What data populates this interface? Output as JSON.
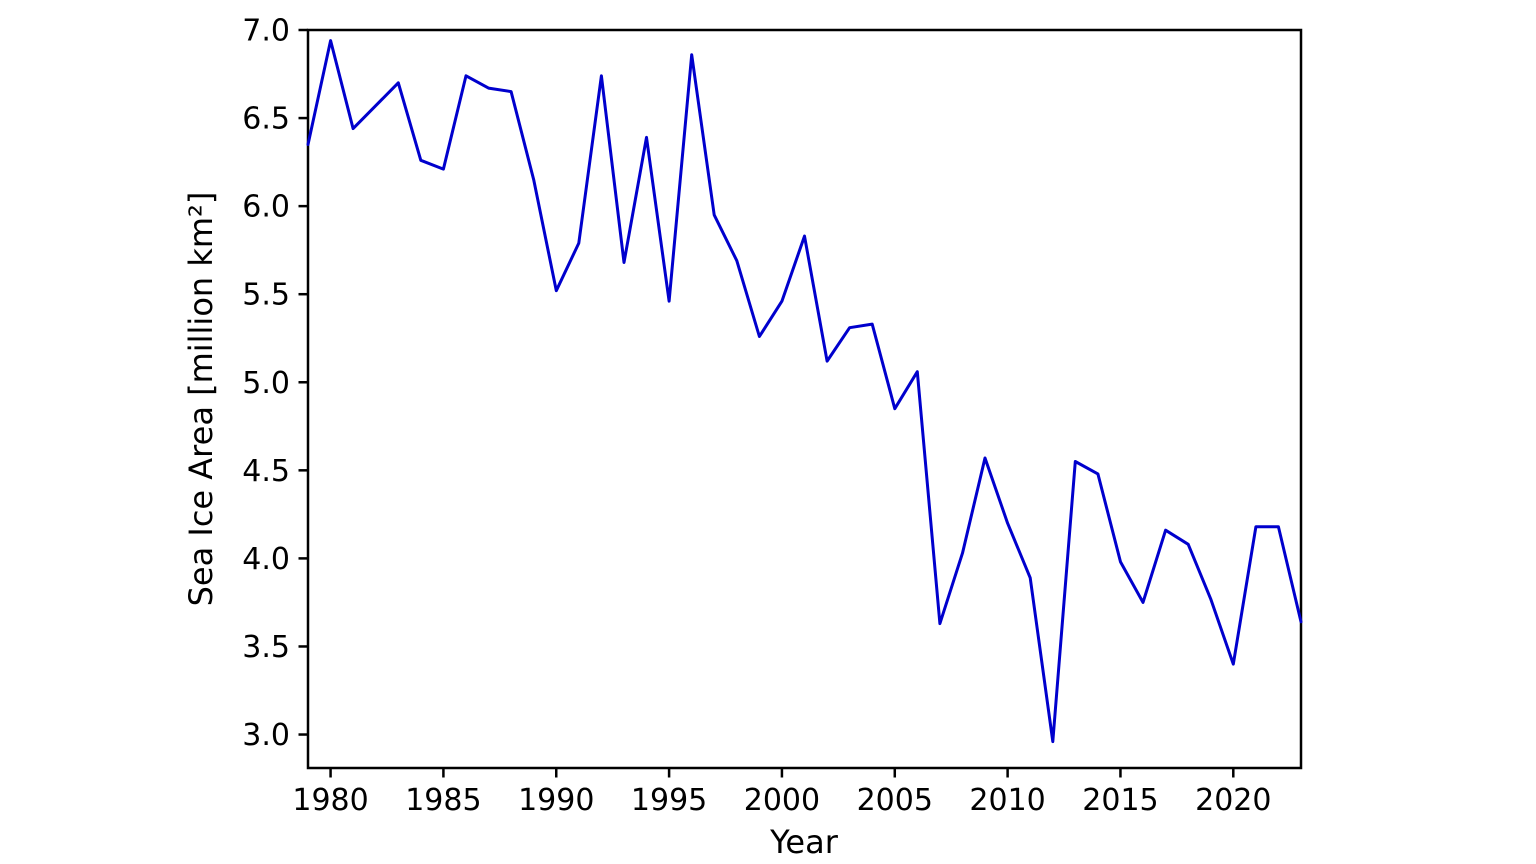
{
  "figure": {
    "background": "#ffffff",
    "frame_color": "#000000",
    "text_color": "#000000"
  },
  "chart_data": {
    "type": "line",
    "title": "",
    "xlabel": "Year",
    "ylabel": "Sea Ice Area [million km²]",
    "grid": false,
    "legend": "none",
    "xlim": [
      1979,
      2023
    ],
    "ylim": [
      2.81,
      7.0
    ],
    "xticks": [
      1980,
      1985,
      1990,
      1995,
      2000,
      2005,
      2010,
      2015,
      2020
    ],
    "yticks": [
      3.0,
      3.5,
      4.0,
      4.5,
      5.0,
      5.5,
      6.0,
      6.5,
      7.0
    ],
    "x": [
      1979,
      1980,
      1981,
      1982,
      1983,
      1984,
      1985,
      1986,
      1987,
      1988,
      1989,
      1990,
      1991,
      1992,
      1993,
      1994,
      1995,
      1996,
      1997,
      1998,
      1999,
      2000,
      2001,
      2002,
      2003,
      2004,
      2005,
      2006,
      2007,
      2008,
      2009,
      2010,
      2011,
      2012,
      2013,
      2014,
      2015,
      2016,
      2017,
      2018,
      2019,
      2020,
      2021,
      2022,
      2023
    ],
    "series": [
      {
        "name": "Sea Ice Area",
        "color": "#0000cd",
        "values": [
          6.35,
          6.94,
          6.44,
          6.57,
          6.7,
          6.26,
          6.21,
          6.74,
          6.67,
          6.65,
          6.15,
          5.52,
          5.79,
          6.74,
          5.68,
          6.39,
          5.46,
          6.86,
          5.95,
          5.69,
          5.26,
          5.46,
          5.83,
          5.12,
          5.31,
          5.33,
          4.85,
          5.06,
          3.63,
          4.03,
          4.57,
          4.2,
          3.89,
          2.96,
          4.55,
          4.48,
          3.98,
          3.75,
          4.16,
          4.08,
          3.77,
          3.4,
          4.18,
          4.18,
          3.64
        ]
      }
    ]
  }
}
